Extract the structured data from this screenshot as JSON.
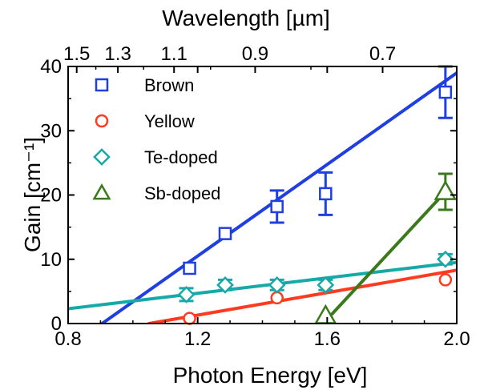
{
  "chart_data": {
    "type": "scatter",
    "xlabel": "Photon Energy [eV]",
    "ylabel": "Gain [cm⁻¹]",
    "top_label": "Wavelength [µm]",
    "xlim": [
      0.8,
      2.0
    ],
    "ylim": [
      0,
      40
    ],
    "x_ticks": [
      0.8,
      1.2,
      1.6,
      2.0
    ],
    "x_tick_labels": [
      "0.8",
      "1.2",
      "1.6",
      "2.0"
    ],
    "y_ticks": [
      0,
      10,
      20,
      30,
      40
    ],
    "y_tick_labels": [
      "0",
      "10",
      "20",
      "30",
      "40"
    ],
    "top_ticks": [
      1.5,
      1.3,
      1.1,
      0.9,
      0.7
    ],
    "top_tick_labels": [
      "1.5",
      "1.3",
      "1.1",
      "0.9",
      "0.7"
    ],
    "legend_position": "top-left",
    "series": [
      {
        "name": "Brown",
        "marker": "square",
        "color": "#1f3fe0",
        "points": [
          {
            "x": 1.175,
            "y": 8.6,
            "err": 0
          },
          {
            "x": 1.285,
            "y": 14.0,
            "err": 0
          },
          {
            "x": 1.445,
            "y": 18.2,
            "err": 2.5
          },
          {
            "x": 1.595,
            "y": 20.2,
            "err": 3.3
          },
          {
            "x": 1.965,
            "y": 36.0,
            "err": 4.0
          }
        ],
        "fit": {
          "x": [
            0.905,
            2.0
          ],
          "y": [
            0,
            39.0
          ]
        }
      },
      {
        "name": "Yellow",
        "marker": "circle",
        "color": "#ff3b1f",
        "points": [
          {
            "x": 1.175,
            "y": 0.8,
            "err": 0
          },
          {
            "x": 1.445,
            "y": 4.0,
            "err": 0
          },
          {
            "x": 1.965,
            "y": 6.8,
            "err": 0
          }
        ],
        "fit": {
          "x": [
            1.05,
            2.0
          ],
          "y": [
            0,
            8.3
          ]
        }
      },
      {
        "name": "Te-doped",
        "marker": "diamond",
        "color": "#17a8a8",
        "points": [
          {
            "x": 1.165,
            "y": 4.5,
            "err": 1.0
          },
          {
            "x": 1.285,
            "y": 6.0,
            "err": 0.8
          },
          {
            "x": 1.445,
            "y": 6.0,
            "err": 0.8
          },
          {
            "x": 1.595,
            "y": 6.0,
            "err": 0.8
          },
          {
            "x": 1.965,
            "y": 10.0,
            "err": 0.8
          }
        ],
        "fit": {
          "x": [
            0.8,
            2.0
          ],
          "y": [
            2.3,
            9.5
          ]
        }
      },
      {
        "name": "Sb-doped",
        "marker": "triangle",
        "color": "#3a7a1a",
        "points": [
          {
            "x": 1.595,
            "y": 1.2,
            "err": 0
          },
          {
            "x": 1.965,
            "y": 20.5,
            "err": 2.8
          }
        ],
        "fit": {
          "x": [
            1.595,
            1.965
          ],
          "y": [
            0.4,
            20.5
          ]
        }
      }
    ]
  }
}
